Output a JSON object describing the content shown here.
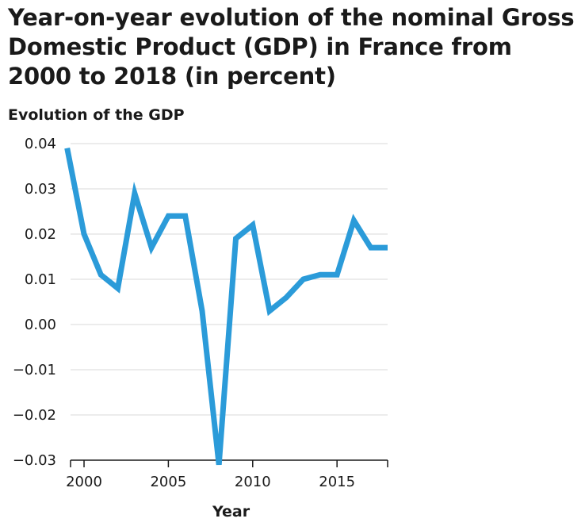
{
  "chart_data": {
    "type": "line",
    "title": "Year-on-year evolution of the nominal Gross Domestic Product (GDP) in France from 2000 to 2018 (in percent)",
    "xlabel": "Year",
    "ylabel": "Evolution of the GDP",
    "xlim": [
      1999.2,
      2018
    ],
    "ylim": [
      -0.03,
      0.04
    ],
    "xticks": [
      2000,
      2005,
      2010,
      2015
    ],
    "yticks": [
      0.04,
      0.03,
      0.02,
      0.01,
      0.0,
      -0.01,
      -0.02,
      -0.03
    ],
    "ytick_labels": [
      "0.04",
      "0.03",
      "0.02",
      "0.01",
      "0.00",
      "−0.01",
      "−0.02",
      "−0.03"
    ],
    "grid": "horizontal",
    "line_color": "#2b9bd9",
    "series": [
      {
        "x": [
          1999,
          2000,
          2001,
          2002,
          2003,
          2004,
          2005,
          2006,
          2007,
          2008,
          2009,
          2010,
          2011,
          2012,
          2013,
          2014,
          2015,
          2016,
          2017,
          2018
        ],
        "values": [
          0.039,
          0.02,
          0.011,
          0.008,
          0.029,
          0.017,
          0.024,
          0.024,
          0.003,
          -0.031,
          0.019,
          0.022,
          0.003,
          0.006,
          0.01,
          0.011,
          0.011,
          0.023,
          0.017,
          0.017
        ]
      }
    ]
  }
}
